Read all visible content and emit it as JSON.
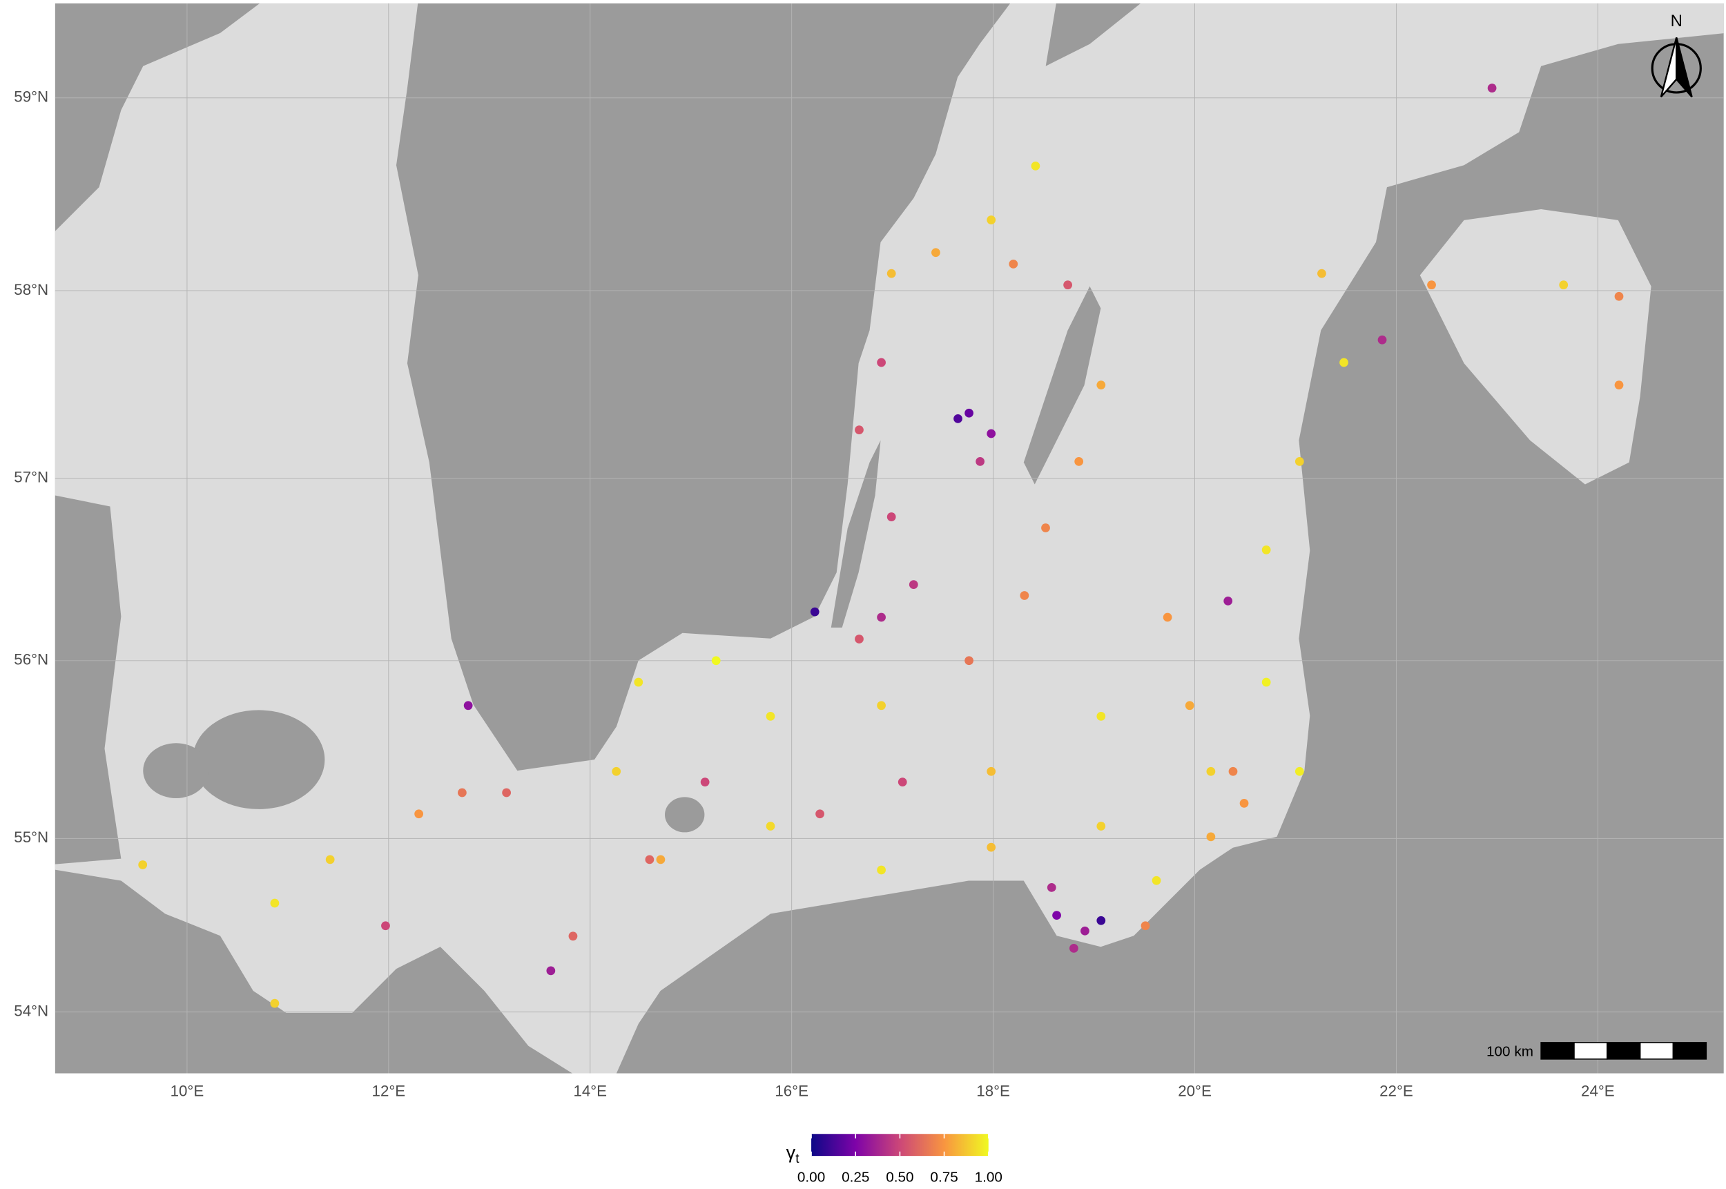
{
  "chart_data": {
    "type": "scatter",
    "xlim": [
      8.69,
      25.25
    ],
    "ylim": [
      53.64,
      59.48
    ],
    "projection": "mercator",
    "grid": true,
    "xticks": [
      {
        "value": 10,
        "label": "10°E"
      },
      {
        "value": 12,
        "label": "12°E"
      },
      {
        "value": 14,
        "label": "14°E"
      },
      {
        "value": 16,
        "label": "16°E"
      },
      {
        "value": 18,
        "label": "18°E"
      },
      {
        "value": 20,
        "label": "20°E"
      },
      {
        "value": 22,
        "label": "22°E"
      },
      {
        "value": 24,
        "label": "24°E"
      }
    ],
    "yticks": [
      {
        "value": 54,
        "label": "54°N"
      },
      {
        "value": 55,
        "label": "55°N"
      },
      {
        "value": 56,
        "label": "56°N"
      },
      {
        "value": 57,
        "label": "57°N"
      },
      {
        "value": 58,
        "label": "58°N"
      },
      {
        "value": 59,
        "label": "59°N"
      }
    ],
    "lon": [
      18.63,
      18.91,
      18.8,
      19.07,
      18.58,
      17.76,
      17.98,
      17.65,
      17.87,
      16.89,
      16.23,
      17.21,
      16.67,
      12.79,
      11.97,
      13.83,
      13.61,
      22.95,
      21.86,
      20.33,
      15.79,
      16.89,
      17.98,
      19.07,
      20.16,
      20.71,
      21.04,
      15.25,
      14.48,
      14.26,
      14.7,
      15.79,
      16.89,
      17.98,
      19.07,
      19.62,
      20.16,
      20.71,
      21.04,
      21.48,
      21.26,
      22.35,
      24.21,
      24.21,
      23.66,
      18.52,
      18.85,
      19.07,
      18.31,
      17.76,
      17.43,
      18.2,
      18.74,
      18.42,
      17.98,
      16.99,
      16.89,
      16.67,
      16.99,
      11.42,
      10.87,
      9.56,
      10.87,
      12.73,
      13.17,
      12.3,
      15.14,
      14.59,
      16.28,
      17.1,
      19.73,
      19.95,
      20.38,
      20.49,
      19.51
    ],
    "lat": [
      54.56,
      54.47,
      54.37,
      54.53,
      54.72,
      57.35,
      57.24,
      57.32,
      57.09,
      56.24,
      56.27,
      56.42,
      56.12,
      55.75,
      54.5,
      54.44,
      54.24,
      59.05,
      57.74,
      56.33,
      55.69,
      55.75,
      55.38,
      55.69,
      55.38,
      55.88,
      55.38,
      56.0,
      55.88,
      55.38,
      54.88,
      55.07,
      54.82,
      54.95,
      55.07,
      54.76,
      55.01,
      56.61,
      57.09,
      57.62,
      58.09,
      58.03,
      57.97,
      57.5,
      58.03,
      56.73,
      57.09,
      57.5,
      56.36,
      56.0,
      58.2,
      58.14,
      58.03,
      58.65,
      58.37,
      58.09,
      57.62,
      57.26,
      56.79,
      54.88,
      54.63,
      54.85,
      54.05,
      55.26,
      55.26,
      55.14,
      55.32,
      54.88,
      55.14,
      55.32,
      56.24,
      55.75,
      55.38,
      55.2,
      54.5
    ],
    "gamma": [
      0.25,
      0.35,
      0.4,
      0.1,
      0.4,
      0.2,
      0.3,
      0.15,
      0.45,
      0.4,
      0.1,
      0.45,
      0.55,
      0.3,
      0.5,
      0.6,
      0.35,
      0.4,
      0.4,
      0.35,
      0.95,
      0.9,
      0.85,
      0.95,
      0.9,
      0.98,
      0.97,
      1.0,
      0.95,
      0.9,
      0.8,
      0.92,
      0.95,
      0.85,
      0.9,
      0.95,
      0.8,
      0.95,
      0.9,
      0.95,
      0.85,
      0.75,
      0.7,
      0.75,
      0.9,
      0.7,
      0.75,
      0.8,
      0.7,
      0.65,
      0.8,
      0.7,
      0.55,
      0.95,
      0.9,
      0.85,
      0.5,
      0.55,
      0.5,
      0.9,
      0.95,
      0.9,
      0.9,
      0.65,
      0.6,
      0.75,
      0.5,
      0.6,
      0.55,
      0.5,
      0.75,
      0.8,
      0.7,
      0.75,
      0.7
    ],
    "legend": {
      "symbol": "γ",
      "subscript": "t",
      "lim": [
        0,
        1
      ],
      "ticks": [
        {
          "value": 0,
          "label": "0.00"
        },
        {
          "value": 0.25,
          "label": "0.25"
        },
        {
          "value": 0.5,
          "label": "0.50"
        },
        {
          "value": 0.75,
          "label": "0.75"
        },
        {
          "value": 1,
          "label": "1.00"
        }
      ]
    },
    "scale_bar_label": "100 km",
    "north_label": "N"
  }
}
